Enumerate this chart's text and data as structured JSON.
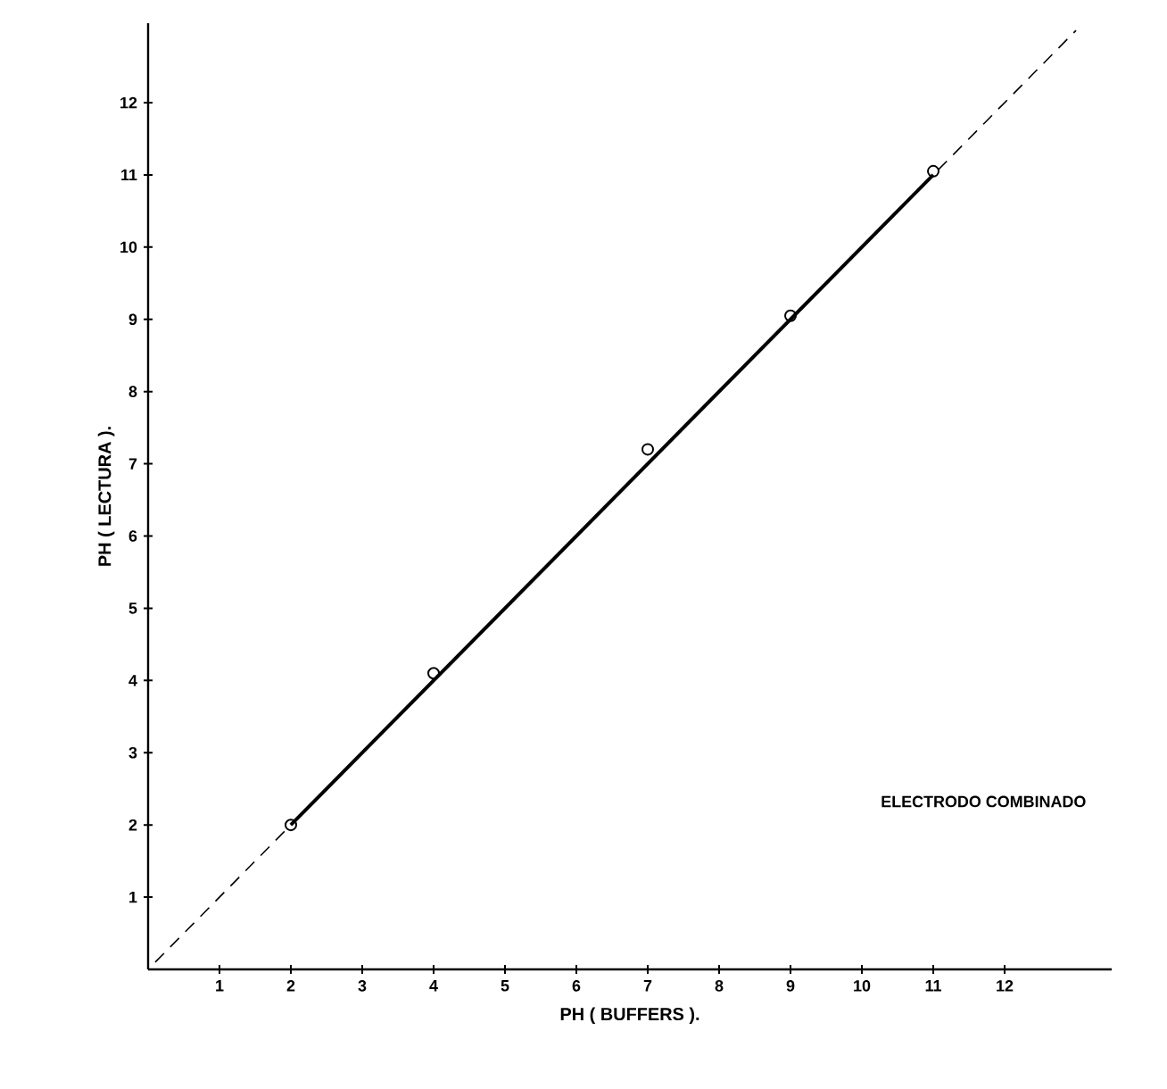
{
  "chart_data": {
    "type": "scatter",
    "xlabel": "PH      ( BUFFERS ).",
    "ylabel": "PH     ( LECTURA ).",
    "xlim": [
      0,
      13.5
    ],
    "ylim": [
      0,
      13.1
    ],
    "xticks": [
      1,
      2,
      3,
      4,
      5,
      6,
      7,
      8,
      9,
      10,
      11,
      12
    ],
    "yticks": [
      1,
      2,
      3,
      4,
      5,
      6,
      7,
      8,
      9,
      10,
      11,
      12
    ],
    "grid": false,
    "series": [
      {
        "color": "#000000",
        "marker": "circle",
        "x": [
          2,
          4,
          7,
          9,
          11
        ],
        "values": [
          2.0,
          4.1,
          7.2,
          9.05,
          11.05
        ]
      },
      {
        "type": "line",
        "color": "#000000",
        "line_style": "solid",
        "x": [
          2,
          11
        ],
        "values": [
          2,
          11
        ]
      },
      {
        "type": "line",
        "color": "#000000",
        "line_style": "dashed",
        "x": [
          0.1,
          13
        ],
        "values": [
          0.1,
          13
        ]
      }
    ],
    "annotations": [
      "ELECTRODO COMBINADO"
    ]
  }
}
